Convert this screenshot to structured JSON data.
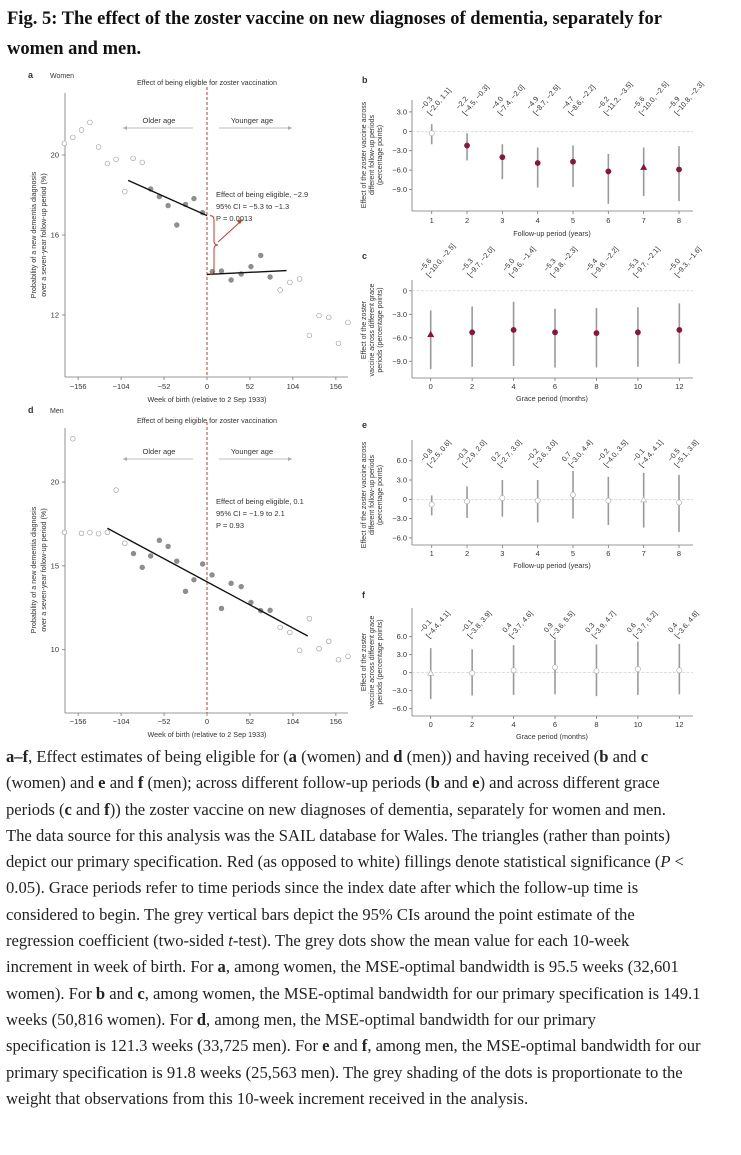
{
  "title": {
    "line1": "Fig. 5: The effect of the zoster vaccine on new diagnoses of dementia, separately for",
    "line2": "women and men."
  },
  "colors": {
    "significant": "#8e1240",
    "cutoff": "#c0392b",
    "ci_bar": "#9a9a9a",
    "weighted_dot": "#8f8f8f"
  },
  "chart_data": [
    {
      "id": "a",
      "type": "scatter",
      "panel_label": "a",
      "group": "Women",
      "title": "Effect of being eligible for zoster vaccination",
      "xlabel": "Week of birth (relative to 2 Sep 1933)",
      "ylabel": [
        "Probability of a new dementia diagnosis",
        "over a seven-year follow-up period (%)"
      ],
      "xticks": [
        "−156",
        "−104",
        "−52",
        "0",
        "52",
        "104",
        "156"
      ],
      "xtick_values": [
        -156,
        -104,
        -52,
        0,
        52,
        104,
        156
      ],
      "yticks": [
        "12",
        "16",
        "20"
      ],
      "ytick_values": [
        12,
        16,
        20
      ],
      "xlim": [
        -172,
        172
      ],
      "ylim": [
        8.9,
        23.1
      ],
      "older_label": "Older age",
      "younger_label": "Younger age",
      "annotation": [
        "Effect of being eligible, −2.9",
        "95% CI = −5.3 to −1.3",
        "P = 0.0013"
      ],
      "cutoff": 0,
      "fit_lines": [
        [
          [
            -95.5,
            18.73
          ],
          [
            0,
            16.97
          ]
        ],
        [
          [
            0,
            14.03
          ],
          [
            96.3,
            14.22
          ]
        ]
      ],
      "points": [
        [
          -172.6,
          20.58,
          0
        ],
        [
          -162.5,
          20.88,
          0
        ],
        [
          -151.9,
          21.25,
          0
        ],
        [
          -141.8,
          21.63,
          0
        ],
        [
          -131.2,
          20.4,
          0
        ],
        [
          -120.6,
          19.57,
          0
        ],
        [
          -110,
          19.78,
          0
        ],
        [
          -99.5,
          18.17,
          0
        ],
        [
          -89.4,
          19.83,
          0
        ],
        [
          -78.4,
          19.63,
          0
        ],
        [
          -68.2,
          18.3,
          1
        ],
        [
          -57.7,
          17.92,
          1
        ],
        [
          -47.1,
          17.47,
          1
        ],
        [
          -36.6,
          16.5,
          1
        ],
        [
          -26,
          17.53,
          1
        ],
        [
          -15.8,
          17.82,
          1
        ],
        [
          -5.3,
          17.12,
          1
        ],
        [
          6.5,
          14.17,
          1
        ],
        [
          17.5,
          14.2,
          1
        ],
        [
          29.2,
          13.75,
          1
        ],
        [
          41.4,
          14.05,
          1
        ],
        [
          53.2,
          14.42,
          1
        ],
        [
          65,
          14.98,
          1
        ],
        [
          76.4,
          13.9,
          1
        ],
        [
          88.5,
          13.25,
          0
        ],
        [
          100.3,
          13.63,
          0
        ],
        [
          112.1,
          13.8,
          0
        ],
        [
          123.9,
          10.98,
          0
        ],
        [
          135.7,
          11.97,
          0
        ],
        [
          147.4,
          11.88,
          0
        ],
        [
          159.2,
          10.58,
          0
        ],
        [
          170.6,
          11.63,
          0
        ]
      ]
    },
    {
      "id": "b",
      "type": "forest",
      "panel_label": "b",
      "xlabel": "Follow-up period (years)",
      "ylabel": [
        "Effect of the zoster vaccine across",
        "different follow-up periods",
        "(percentage points)"
      ],
      "x": [
        1,
        2,
        3,
        4,
        5,
        6,
        7,
        8
      ],
      "xticks": [
        "1",
        "2",
        "3",
        "4",
        "5",
        "6",
        "7",
        "8"
      ],
      "yticks": [
        "3.0",
        "0",
        "−3.0",
        "−6.0",
        "−9.0"
      ],
      "ytick_values": [
        3,
        0,
        -3,
        -6,
        -9
      ],
      "ylim": [
        -12.3,
        4.8
      ],
      "estimates": [
        -0.3,
        -2.2,
        -4.0,
        -4.9,
        -4.7,
        -6.2,
        -5.6,
        -5.9
      ],
      "ci_low": [
        -2.0,
        -4.5,
        -7.4,
        -8.7,
        -8.6,
        -11.2,
        -10.0,
        -10.8
      ],
      "ci_high": [
        1.1,
        -0.3,
        -2.0,
        -2.5,
        -2.2,
        -3.5,
        -2.5,
        -2.3
      ],
      "labels": [
        "−0.3",
        "−2.2",
        "−4.0",
        "−4.9",
        "−4.7",
        "−6.2",
        "−5.6",
        "−5.9"
      ],
      "ci_labels": [
        "[−2.0, 1.1]",
        "[−4.5, −0.3]",
        "[−7.4, −2.0]",
        "[−8.7, −2.5]",
        "[−8.6, −2.2]",
        "[−11.2, −3.5]",
        "[−10.0, −2.5]",
        "[−10.8, −2.3]"
      ],
      "significant": [
        false,
        true,
        true,
        true,
        true,
        true,
        true,
        true
      ],
      "primary_index": 6
    },
    {
      "id": "c",
      "type": "forest",
      "panel_label": "c",
      "xlabel": "Grace period (months)",
      "ylabel": [
        "Effect of the zoster",
        "vaccine across different grace",
        "periods (percentage points)"
      ],
      "x": [
        0,
        2,
        4,
        6,
        8,
        10,
        12
      ],
      "xticks": [
        "0",
        "2",
        "4",
        "6",
        "8",
        "10",
        "12"
      ],
      "yticks": [
        "0",
        "−3.0",
        "−6.0",
        "−9.0"
      ],
      "ytick_values": [
        0,
        -3,
        -6,
        -9
      ],
      "ylim": [
        -11.1,
        1.4
      ],
      "estimates": [
        -5.6,
        -5.3,
        -5.0,
        -5.3,
        -5.4,
        -5.3,
        -5.0
      ],
      "ci_low": [
        -10.0,
        -9.7,
        -9.6,
        -9.8,
        -9.8,
        -9.7,
        -9.3
      ],
      "ci_high": [
        -2.5,
        -2.0,
        -1.4,
        -2.3,
        -2.2,
        -2.1,
        -1.6
      ],
      "labels": [
        "−5.6",
        "−5.3",
        "−5.0",
        "−5.3",
        "−5.4",
        "−5.3",
        "−5.0"
      ],
      "ci_labels": [
        "[−10.0, −2.5]",
        "[−9.7, −2.0]",
        "[−9.6, −1.4]",
        "[−9.8, −2.3]",
        "[−9.8, −2.2]",
        "[−9.7, −2.1]",
        "[−9.3, −1.6]"
      ],
      "significant": [
        true,
        true,
        true,
        true,
        true,
        true,
        true
      ],
      "primary_index": 0
    },
    {
      "id": "d",
      "type": "scatter",
      "panel_label": "d",
      "group": "Men",
      "title": "Effect of being eligible for zoster vaccination",
      "xlabel": "Week of birth (relative to 2 Sep 1933)",
      "ylabel": [
        "Probability of a new dementia diagnosis",
        "over a seven-year follow-up period (%)"
      ],
      "xticks": [
        "−156",
        "−104",
        "−52",
        "0",
        "52",
        "104",
        "156"
      ],
      "xtick_values": [
        -156,
        -104,
        -52,
        0,
        52,
        104,
        156
      ],
      "yticks": [
        "10",
        "15",
        "20"
      ],
      "ytick_values": [
        10,
        15,
        20
      ],
      "xlim": [
        -172,
        172
      ],
      "ylim": [
        6.2,
        23.2
      ],
      "older_label": "Older age",
      "younger_label": "Younger age",
      "annotation": [
        "Effect of being eligible, 0.1",
        "95% CI = −1.9 to 2.1",
        "P = 0.93"
      ],
      "cutoff": 0,
      "fit_lines": [
        [
          [
            -120.6,
            17.24
          ],
          [
            121.9,
            10.82
          ]
        ]
      ],
      "points": [
        [
          -172.6,
          17.0,
          0
        ],
        [
          -162.5,
          22.58,
          0
        ],
        [
          -151.9,
          16.94,
          0
        ],
        [
          -141.8,
          16.98,
          0
        ],
        [
          -131.2,
          16.92,
          0
        ],
        [
          -120.6,
          17.0,
          0
        ],
        [
          -110,
          19.52,
          0
        ],
        [
          -99.5,
          16.34,
          0
        ],
        [
          -89,
          15.73,
          1
        ],
        [
          -78.4,
          14.91,
          1
        ],
        [
          -68.2,
          15.59,
          1
        ],
        [
          -57.7,
          16.52,
          1
        ],
        [
          -47.1,
          16.16,
          1
        ],
        [
          -36.6,
          15.28,
          1
        ],
        [
          -26,
          13.48,
          1
        ],
        [
          -15.8,
          14.17,
          1
        ],
        [
          -5.3,
          15.11,
          1
        ],
        [
          6.1,
          14.46,
          1
        ],
        [
          17.5,
          12.46,
          1
        ],
        [
          29.2,
          13.96,
          1
        ],
        [
          41.4,
          13.76,
          1
        ],
        [
          53.2,
          12.82,
          1
        ],
        [
          65,
          12.33,
          1
        ],
        [
          76.4,
          12.35,
          1
        ],
        [
          88.5,
          11.33,
          0
        ],
        [
          100.3,
          11.03,
          0
        ],
        [
          112.1,
          9.96,
          0
        ],
        [
          123.9,
          11.85,
          0
        ],
        [
          135.7,
          10.06,
          0
        ],
        [
          147.4,
          10.5,
          0
        ],
        [
          159.2,
          9.4,
          0
        ],
        [
          170.6,
          9.6,
          0
        ]
      ]
    },
    {
      "id": "e",
      "type": "forest",
      "panel_label": "e",
      "xlabel": "Follow-up period (years)",
      "ylabel": [
        "Effect of the zoster vaccine across",
        "different follow-up periods",
        "(percentage points)"
      ],
      "x": [
        1,
        2,
        3,
        4,
        5,
        6,
        7,
        8
      ],
      "xticks": [
        "1",
        "2",
        "3",
        "4",
        "5",
        "6",
        "7",
        "8"
      ],
      "yticks": [
        "6.0",
        "3.0",
        "0",
        "−3.0",
        "−6.0"
      ],
      "ytick_values": [
        6,
        3,
        0,
        -3,
        -6
      ],
      "ylim": [
        -7.1,
        9.2
      ],
      "estimates": [
        -0.8,
        -0.3,
        0.2,
        -0.2,
        0.7,
        -0.2,
        -0.1,
        -0.5
      ],
      "ci_low": [
        -2.5,
        -2.9,
        -2.7,
        -3.6,
        -3.0,
        -4.0,
        -4.4,
        -5.1
      ],
      "ci_high": [
        0.6,
        2.0,
        3.0,
        3.0,
        4.4,
        3.5,
        4.1,
        3.8
      ],
      "labels": [
        "−0.8",
        "−0.3",
        "0.2",
        "−0.2",
        "0.7",
        "−0.2",
        "−0.1",
        "−0.5"
      ],
      "ci_labels": [
        "[−2.5, 0.6]",
        "[−2.9, 2.0]",
        "[−2.7, 3.0]",
        "[−3.6, 3.0]",
        "[−3.0, 4.4]",
        "[−4.0, 3.5]",
        "[−4.4, 4.1]",
        "[−5.1, 3.8]"
      ],
      "significant": [
        false,
        false,
        false,
        false,
        false,
        false,
        false,
        false
      ],
      "primary_index": 6
    },
    {
      "id": "f",
      "type": "forest",
      "panel_label": "f",
      "xlabel": "Grace period (months)",
      "ylabel": [
        "Effect of the zoster",
        "vaccine across different grace",
        "periods (percentage points)"
      ],
      "x": [
        0,
        2,
        4,
        6,
        8,
        10,
        12
      ],
      "xticks": [
        "0",
        "2",
        "4",
        "6",
        "8",
        "10",
        "12"
      ],
      "yticks": [
        "6.0",
        "3.0",
        "0",
        "−3.0",
        "−6.0"
      ],
      "ytick_values": [
        6,
        3,
        0,
        -3,
        -6
      ],
      "ylim": [
        -7.2,
        10.8
      ],
      "estimates": [
        -0.1,
        -0.1,
        0.4,
        0.9,
        0.3,
        0.6,
        0.4
      ],
      "ci_low": [
        -4.4,
        -3.8,
        -3.7,
        -3.6,
        -3.9,
        -3.7,
        -3.6
      ],
      "ci_high": [
        4.1,
        3.9,
        4.6,
        5.5,
        4.7,
        5.2,
        4.8
      ],
      "labels": [
        "−0.1",
        "−0.1",
        "0.4",
        "0.9",
        "0.3",
        "0.6",
        "0.4"
      ],
      "ci_labels": [
        "[−4.4, 4.1]",
        "[−3.8, 3.9]",
        "[−3.7, 4.6]",
        "[−3.6, 5.5]",
        "[−3.9, 4.7]",
        "[−3.7, 5.2]",
        "[−3.6, 4.8]"
      ],
      "significant": [
        false,
        false,
        false,
        false,
        false,
        false,
        false
      ],
      "primary_index": 0
    }
  ],
  "caption": {
    "lines": [
      [
        {
          "t": "a–f",
          "s": "b"
        },
        {
          "t": ", Effect estimates of being eligible for ("
        },
        {
          "t": "a",
          "s": "b"
        },
        {
          "t": " (women) and "
        },
        {
          "t": "d",
          "s": "b"
        },
        {
          "t": " (men)) and having received ("
        },
        {
          "t": "b",
          "s": "b"
        },
        {
          "t": " and "
        },
        {
          "t": "c",
          "s": "b"
        }
      ],
      [
        {
          "t": "(women) and "
        },
        {
          "t": "e",
          "s": "b"
        },
        {
          "t": " and "
        },
        {
          "t": "f",
          "s": "b"
        },
        {
          "t": " (men); across different follow-up periods ("
        },
        {
          "t": "b",
          "s": "b"
        },
        {
          "t": " and "
        },
        {
          "t": "e",
          "s": "b"
        },
        {
          "t": ") and across different grace"
        }
      ],
      [
        {
          "t": "periods ("
        },
        {
          "t": "c",
          "s": "b"
        },
        {
          "t": " and "
        },
        {
          "t": "f",
          "s": "b"
        },
        {
          "t": ")) the zoster vaccine on new diagnoses of dementia, separately for women and men."
        }
      ],
      [
        {
          "t": "The data source for this analysis was the SAIL database for Wales. The triangles (rather than points)"
        }
      ],
      [
        {
          "t": "depict our primary specification. Red (as opposed to white) fillings denote statistical significance ("
        },
        {
          "t": "P",
          "s": "i"
        },
        {
          "t": " <"
        }
      ],
      [
        {
          "t": "0.05). Grace periods refer to time periods since the index date after which the follow-up time is"
        }
      ],
      [
        {
          "t": "considered to begin. The grey vertical bars depict the 95% CIs around the point estimate of the"
        }
      ],
      [
        {
          "t": "regression coefficient (two-sided "
        },
        {
          "t": "t",
          "s": "i"
        },
        {
          "t": "-test). The grey dots show the mean value for each 10-week"
        }
      ],
      [
        {
          "t": "increment in week of birth. For "
        },
        {
          "t": "a",
          "s": "b"
        },
        {
          "t": ", among women, the MSE-optimal bandwidth is 95.5 weeks (32,601"
        }
      ],
      [
        {
          "t": "women). For "
        },
        {
          "t": "b",
          "s": "b"
        },
        {
          "t": " and "
        },
        {
          "t": "c",
          "s": "b"
        },
        {
          "t": ", among women, the MSE-optimal bandwidth for our primary specification is 149.1"
        }
      ],
      [
        {
          "t": "weeks (50,816 women). For "
        },
        {
          "t": "d",
          "s": "b"
        },
        {
          "t": ", among men, the MSE-optimal bandwidth for our primary"
        }
      ],
      [
        {
          "t": "specification is 121.3 weeks (33,725 men). For "
        },
        {
          "t": "e",
          "s": "b"
        },
        {
          "t": " and "
        },
        {
          "t": "f",
          "s": "b"
        },
        {
          "t": ", among men, the MSE-optimal bandwidth for our"
        }
      ],
      [
        {
          "t": "primary specification is 91.8 weeks (25,563 men). The grey shading of the dots is proportionate to the"
        }
      ],
      [
        {
          "t": "weight that observations from this 10-week increment received in the analysis."
        }
      ]
    ]
  }
}
